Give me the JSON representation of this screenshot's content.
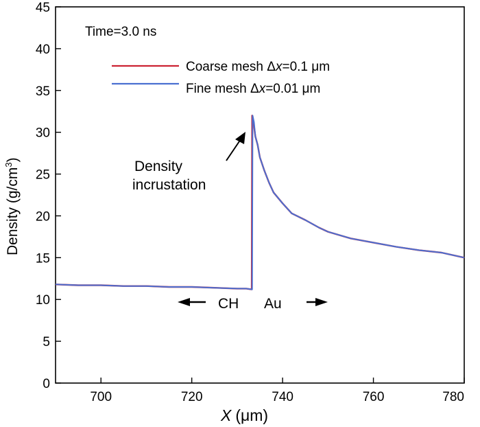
{
  "chart_data": {
    "type": "line",
    "annotation_time": "Time=3.0 ns",
    "xlabel": "X",
    "xlabel_unit": "(μm)",
    "ylabel": "Density (g/cm",
    "ylabel_sup": "3",
    "ylabel_close": ")",
    "xlim": [
      690,
      780
    ],
    "ylim": [
      0,
      45
    ],
    "xticks": [
      700,
      720,
      740,
      760,
      780
    ],
    "yticks": [
      0,
      5,
      10,
      15,
      20,
      25,
      30,
      35,
      40,
      45
    ],
    "legend": [
      {
        "prefix": "Coarse mesh ",
        "delta": "Δ",
        "var": "x",
        "suffix": "=0.1 μm",
        "color": "#cc2233"
      },
      {
        "prefix": "Fine mesh ",
        "delta": "Δ",
        "var": "x",
        "suffix": "=0.01 μm",
        "color": "#4a6fd1"
      }
    ],
    "annotations": {
      "peak_line1": "Density",
      "peak_line2": "incrustation",
      "left_region": "CH",
      "right_region": "Au"
    },
    "series": [
      {
        "name": "Coarse mesh Δx=0.1 μm",
        "color": "#cc2233",
        "x": [
          690,
          695,
          700,
          705,
          710,
          715,
          720,
          725,
          730,
          732,
          733.2,
          733.3,
          733.6,
          734,
          734.5,
          735,
          736,
          737,
          738,
          740,
          742,
          745,
          748,
          750,
          755,
          760,
          765,
          770,
          775,
          780
        ],
        "y": [
          11.8,
          11.7,
          11.7,
          11.6,
          11.6,
          11.5,
          11.5,
          11.4,
          11.3,
          11.3,
          11.2,
          32.0,
          31.2,
          29.5,
          28.5,
          27.0,
          25.4,
          24.0,
          22.8,
          21.5,
          20.3,
          19.5,
          18.6,
          18.1,
          17.3,
          16.8,
          16.3,
          15.9,
          15.6,
          15.0
        ]
      },
      {
        "name": "Fine mesh Δx=0.01 μm",
        "color": "#4a6fd1",
        "x": [
          690,
          695,
          700,
          705,
          710,
          715,
          720,
          725,
          730,
          732,
          733.3,
          733.4,
          733.7,
          734,
          734.5,
          735,
          736,
          737,
          738,
          740,
          742,
          745,
          748,
          750,
          755,
          760,
          765,
          770,
          775,
          780
        ],
        "y": [
          11.8,
          11.7,
          11.7,
          11.6,
          11.6,
          11.5,
          11.5,
          11.4,
          11.3,
          11.3,
          11.2,
          32.0,
          31.2,
          29.5,
          28.5,
          27.0,
          25.4,
          24.0,
          22.8,
          21.5,
          20.3,
          19.5,
          18.6,
          18.1,
          17.3,
          16.8,
          16.3,
          15.9,
          15.6,
          15.0
        ]
      }
    ]
  }
}
